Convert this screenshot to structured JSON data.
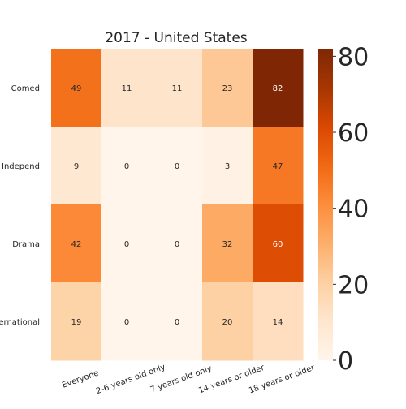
{
  "chart_data": {
    "type": "heatmap",
    "title": "2017 - United States",
    "rows": [
      "Comed",
      "Independ",
      "Drama",
      "International"
    ],
    "columns": [
      "Everyone",
      "2-6 years old only",
      "7 years old only",
      "14 years or older",
      "18 years or older"
    ],
    "values": [
      [
        49,
        11,
        11,
        23,
        82
      ],
      [
        9,
        0,
        0,
        3,
        47
      ],
      [
        42,
        0,
        0,
        32,
        60
      ],
      [
        19,
        0,
        0,
        20,
        14
      ]
    ],
    "colorbar": {
      "min": 0,
      "max": 82,
      "ticks": [
        0,
        20,
        40,
        60,
        80
      ]
    },
    "colormap": "Oranges",
    "colors": {
      "low": "#fff5eb",
      "high": "#7f2704"
    }
  }
}
